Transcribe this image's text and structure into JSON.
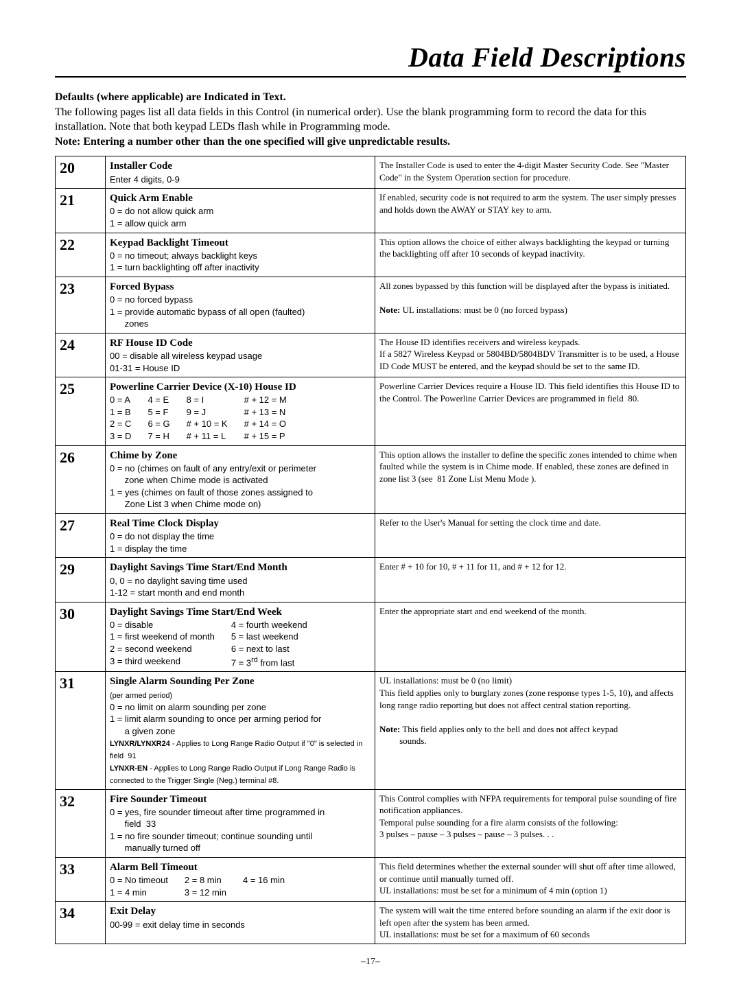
{
  "title": "Data Field Descriptions",
  "intro": {
    "bold1": "Defaults (where applicable) are Indicated in Text.",
    "para": "The following pages list all data fields in this Control (in numerical order). Use the blank programming form to record the data for this installation.  Note that both keypad LEDs flash while in Programming mode.",
    "bold2": "Note: Entering a number other than the one specified will give unpredictable results."
  },
  "rows": [
    {
      "num": "20",
      "title": "Installer Code",
      "left_html": "Enter 4 digits, 0-9",
      "right_html": "The Installer Code is used to enter the 4-digit Master Security Code. See \"Master Code\" in the System Operation  section for procedure."
    },
    {
      "num": "21",
      "title": "Quick Arm Enable",
      "left_html": "0 = do not allow quick arm<br>1 = allow quick arm",
      "right_html": "If enabled, security code is not required to arm the system. The user simply presses and holds down the AWAY or STAY key to arm."
    },
    {
      "num": "22",
      "title": "Keypad Backlight Timeout",
      "left_html": "0 = no timeout; always backlight keys<br>1 = turn backlighting off after inactivity",
      "right_html": "This option allows the choice of either always backlighting the keypad or turning the backlighting off after 10 seconds of keypad inactivity."
    },
    {
      "num": "23",
      "title": "Forced Bypass",
      "left_html": "0 = no forced bypass<br>1 = provide automatic bypass of all open (faulted)<br>&nbsp;&nbsp;&nbsp;&nbsp;&nbsp;&nbsp;zones",
      "right_html": "All zones bypassed by this function will be displayed after the bypass is initiated.<br><br><span class=\"note-bold\">Note:</span>  UL installations:  must be 0 (no forced bypass)"
    },
    {
      "num": "24",
      "title": "RF House ID Code",
      "left_html": "00 = disable all wireless keypad usage<br>01-31 = House ID",
      "right_html": "The House ID identifies receivers and wireless keypads.<br>If a 5827 Wireless Keypad or 5804BD/5804BDV Transmitter is to be used, a House ID Code MUST be entered, and the keypad should be set to the same ID."
    },
    {
      "num": "25",
      "title": "Powerline Carrier Device (X-10) House ID",
      "left_html": "<div class=\"tabcols\"><div class=\"tabcol\">0 = A<br>1 = B<br>2 = C<br>3 = D</div><div class=\"tabcol\">4 = E<br>5 = F<br>6 = G<br>7 = H</div><div class=\"tabcol\">8 = I<br>9 = J<br># + 10 = K<br># + 11 = L</div><div class=\"tabcol\"># + 12 = M<br># + 13 = N<br># + 14 = O<br># + 15 = P</div></div>",
      "right_html": "Powerline Carrier Devices require a House ID. This field identifies this House ID to the Control.  The Powerline Carrier Devices are programmed in field &nbsp;80."
    },
    {
      "num": "26",
      "title": "Chime by Zone",
      "left_html": "0 = no (chimes on fault of any entry/exit or perimeter<br>&nbsp;&nbsp;&nbsp;&nbsp;&nbsp;&nbsp;zone when Chime mode is activated<br>1 = yes (chimes on fault of those zones assigned to<br>&nbsp;&nbsp;&nbsp;&nbsp;&nbsp;&nbsp;Zone List 3 when Chime mode on)",
      "right_html": "This option allows the installer to define the specific zones intended to chime when faulted while the system is in Chime mode. If enabled, these zones are defined in zone list 3 (see &nbsp;81 Zone List Menu Mode )."
    },
    {
      "num": "27",
      "title": "Real Time Clock Display",
      "left_html": "0 = do not display the time<br>1 = display the time",
      "right_html": "Refer to the User's Manual for setting the clock time and date."
    },
    {
      "num": "29",
      "title": "Daylight Savings Time Start/End Month",
      "left_html": "0, 0 = no daylight saving time used<br>1-12 = start month and end month",
      "right_html": "Enter # + 10 for 10, # + 11 for 11, and # + 12 for 12."
    },
    {
      "num": "30",
      "title": "Daylight Savings Time Start/End Week",
      "left_html": "<div class=\"tabcols\"><div class=\"tabcol\">0 = disable<br>1 = first weekend of month<br>2 = second weekend<br>3 = third weekend</div><div class=\"tabcol\">4 = fourth weekend<br>5 = last weekend<br>6 = next to last<br>7 = 3<sup>rd</sup> from last</div></div>",
      "right_html": "Enter the appropriate start and end weekend of the month."
    },
    {
      "num": "31",
      "title": "Single Alarm Sounding Per Zone",
      "left_html": "<span class=\"small-note\">(per armed period)</span><br>0 = no limit on alarm sounding per zone<br>1 = limit alarm sounding to once per arming period for<br>&nbsp;&nbsp;&nbsp;&nbsp;&nbsp;&nbsp;a given zone<br><span class=\"small-note\"><b>LYNXR/LYNXR24</b> - Applies to Long Range Radio Output if \"0\" is selected in field &nbsp;91<br><b>LYNXR-EN</b> - Applies to Long Range Radio Output if Long Range Radio is connected to the Trigger Single (Neg.) terminal #8.</span>",
      "right_html": "UL installations: must be 0 (no limit)<br>This field applies only to burglary zones (zone response types 1-5, 10), and affects long range radio reporting but does not affect central station reporting.<br><br><span class=\"note-bold\">Note:</span> This field applies only to the bell and does not affect keypad<br>&nbsp;&nbsp;&nbsp;&nbsp;&nbsp;&nbsp;&nbsp;&nbsp;&nbsp;sounds."
    },
    {
      "num": "32",
      "title": "Fire Sounder Timeout",
      "left_html": "0 = yes, fire sounder timeout after time programmed in<br>&nbsp;&nbsp;&nbsp;&nbsp;&nbsp;&nbsp;field &nbsp;33<br>1 = no fire sounder timeout; continue sounding until<br>&nbsp;&nbsp;&nbsp;&nbsp;&nbsp;&nbsp;manually turned off",
      "right_html": "This Control complies with NFPA requirements for temporal pulse sounding of fire notification appliances.<br>Temporal pulse sounding for a fire alarm consists of the following:<br>3 pulses – pause – 3 pulses – pause – 3 pulses. . ."
    },
    {
      "num": "33",
      "title": "Alarm Bell Timeout",
      "left_html": "<div class=\"tabcols\"><div class=\"tabcol\">0 = No timeout<br>1 = 4 min</div><div class=\"tabcol\">2 = 8 min<br>3 = 12 min</div><div class=\"tabcol\">4 = 16 min<br>&nbsp;</div></div>",
      "right_html": "This field determines whether the external sounder will shut off after time allowed, or continue until manually turned off.<br>UL installations: must be set for a minimum of 4 min (option 1)"
    },
    {
      "num": "34",
      "title": "Exit Delay",
      "left_html": "00-99 = exit delay time in seconds",
      "right_html": "The system will wait the time entered before sounding an alarm if the exit door is left open after the system has been armed.<br>UL installations: must be set for a maximum of 60 seconds"
    }
  ],
  "page_num": "–17–"
}
